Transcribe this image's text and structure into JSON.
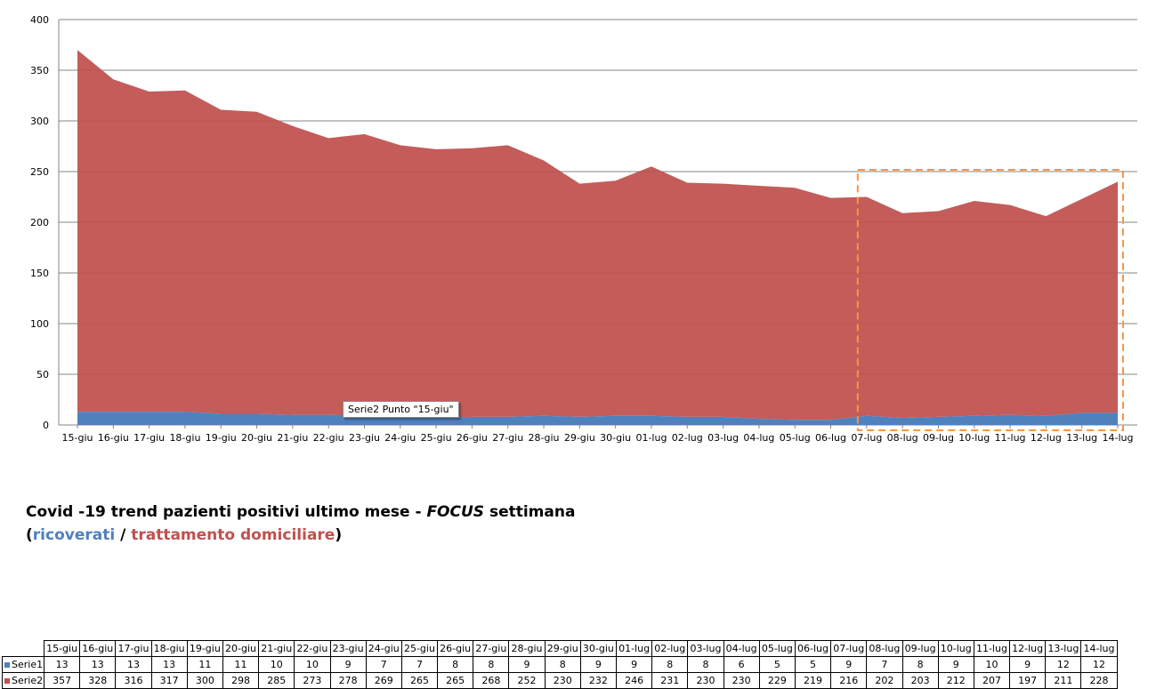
{
  "chart_data": {
    "type": "area",
    "stacked": true,
    "categories": [
      "15-giu",
      "16-giu",
      "17-giu",
      "18-giu",
      "19-giu",
      "20-giu",
      "21-giu",
      "22-giu",
      "23-giu",
      "24-giu",
      "25-giu",
      "26-giu",
      "27-giu",
      "28-giu",
      "29-giu",
      "30-giu",
      "01-lug",
      "02-lug",
      "03-lug",
      "04-lug",
      "05-lug",
      "06-lug",
      "07-lug",
      "08-lug",
      "09-lug",
      "10-lug",
      "11-lug",
      "12-lug",
      "13-lug",
      "14-lug"
    ],
    "series": [
      {
        "name": "Serie1",
        "color": "#4F81BD",
        "values": [
          13,
          13,
          13,
          13,
          11,
          11,
          10,
          10,
          9,
          7,
          7,
          8,
          8,
          9,
          8,
          9,
          9,
          8,
          8,
          6,
          5,
          5,
          9,
          7,
          8,
          9,
          10,
          9,
          12,
          12
        ]
      },
      {
        "name": "Serie2",
        "color": "#C0504D",
        "values": [
          357,
          328,
          316,
          317,
          300,
          298,
          285,
          273,
          278,
          269,
          265,
          265,
          268,
          252,
          230,
          232,
          246,
          231,
          230,
          230,
          229,
          219,
          216,
          202,
          203,
          212,
          207,
          197,
          211,
          228
        ]
      }
    ],
    "ylim": [
      0,
      400
    ],
    "yticks": [
      "0",
      "50",
      "100",
      "150",
      "200",
      "250",
      "300",
      "350",
      "400"
    ],
    "grid": true,
    "focus_range": [
      "07-lug",
      "14-lug"
    ],
    "focus_color": "#F79646"
  },
  "tooltip": "Serie2 Punto \"15-giu\"",
  "caption": {
    "line1_a": "Covid -19 trend pazienti positivi ultimo mese - ",
    "line1_focus": "FOCUS",
    "line1_b": " settimana",
    "open": "(",
    "ricoverati": "ricoverati",
    "slash": " / ",
    "domiciliare": "trattamento domiciliare",
    "close": ")"
  }
}
